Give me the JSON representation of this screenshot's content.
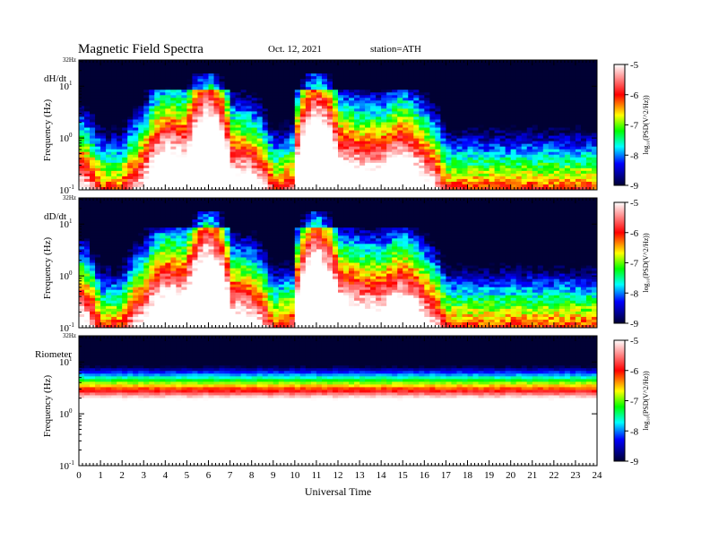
{
  "title": "Magnetic Field Spectra",
  "date": "Oct. 12, 2021",
  "station": "station=ATH",
  "xlabel": "Universal Time",
  "ylabel": "Frequency  (Hz)",
  "top_tick_label": "32Hz",
  "ytick_labels": [
    "10",
    "10",
    "10"
  ],
  "ytick_exponents": [
    "1",
    "0",
    "-1"
  ],
  "colorbar_label": "log₁₀(PSD(V^2/Hz))",
  "colorbar_ticks": [
    "-5",
    "-6",
    "-7",
    "-8",
    "-9"
  ],
  "colors": {
    "white": "#ffffff",
    "red": "#ff0000",
    "yellow": "#ffff00",
    "green": "#00ff00",
    "cyan": "#00ffff",
    "blue": "#0000ff",
    "navy": "#000033"
  },
  "chart_data": [
    {
      "type": "heatmap",
      "panel_label": "dH/dt",
      "x": [
        0,
        1,
        2,
        3,
        4,
        5,
        6,
        7,
        8,
        9,
        10,
        11,
        12,
        13,
        14,
        15,
        16,
        17,
        18,
        19,
        20,
        21,
        22,
        23,
        24
      ],
      "xlim": [
        0,
        24
      ],
      "ylim": [
        0.1,
        32
      ],
      "yscale": "log",
      "clim": [
        -9,
        -5
      ],
      "red_edge_hz": [
        0.35,
        0.1,
        0.1,
        0.35,
        1.6,
        1.3,
        8,
        0.6,
        0.5,
        0.1,
        0.15,
        7.5,
        1,
        0.7,
        0.7,
        1.2,
        0.5,
        0.1,
        0.1,
        0.1,
        0.1,
        0.1,
        0.1,
        0.1,
        0.1
      ]
    },
    {
      "type": "heatmap",
      "panel_label": "dD/dt",
      "x": [
        0,
        1,
        2,
        3,
        4,
        5,
        6,
        7,
        8,
        9,
        10,
        11,
        12,
        13,
        14,
        15,
        16,
        17,
        18,
        19,
        20,
        21,
        22,
        23,
        24
      ],
      "xlim": [
        0,
        24
      ],
      "ylim": [
        0.1,
        32
      ],
      "yscale": "log",
      "clim": [
        -9,
        -5
      ],
      "red_edge_hz": [
        0.5,
        0.1,
        0.1,
        0.4,
        1.3,
        1.1,
        7.5,
        0.55,
        0.45,
        0.1,
        0.15,
        7,
        0.95,
        0.7,
        0.65,
        1.1,
        0.45,
        0.1,
        0.1,
        0.1,
        0.1,
        0.1,
        0.1,
        0.1,
        0.1
      ]
    },
    {
      "type": "heatmap",
      "panel_label": "Riometer",
      "x": [
        0,
        24
      ],
      "xlim": [
        0,
        24
      ],
      "ylim": [
        0.1,
        32
      ],
      "yscale": "log",
      "clim": [
        -9,
        -5
      ],
      "red_edge_hz": [
        5,
        5
      ]
    }
  ]
}
